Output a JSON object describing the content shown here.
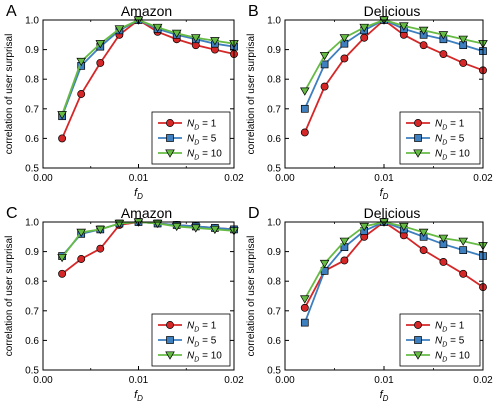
{
  "colors": {
    "red": "#d62728",
    "blue": "#3d7fbf",
    "green": "#66bb44",
    "axis": "#000000"
  },
  "legend_labels": [
    "N_D = 1",
    "N_D = 5",
    "N_D = 10"
  ],
  "chart_data": [
    {
      "panel": "A",
      "title": "Amazon",
      "type": "line",
      "xlabel": "f_D",
      "ylabel": "correlation of user surprisal",
      "xlim": [
        0,
        0.02
      ],
      "ylim": [
        0.5,
        1.0
      ],
      "xticks": [
        0,
        0.01,
        0.02
      ],
      "xtick_labels": [
        "0.00",
        "0.01",
        "0.02"
      ],
      "yticks": [
        0.5,
        0.6,
        0.7,
        0.8,
        0.9,
        1.0
      ],
      "ytick_labels": [
        "0.5",
        "0.6",
        "0.7",
        "0.8",
        "0.9",
        "1.0"
      ],
      "legend_position": "lower-right",
      "x": [
        0.002,
        0.004,
        0.006,
        0.008,
        0.01,
        0.012,
        0.014,
        0.016,
        0.018,
        0.02
      ],
      "series": [
        {
          "name": "N_D = 1",
          "color": "red",
          "marker": "circle",
          "values": [
            0.6,
            0.75,
            0.855,
            0.95,
            1.0,
            0.96,
            0.935,
            0.915,
            0.9,
            0.885
          ]
        },
        {
          "name": "N_D = 5",
          "color": "blue",
          "marker": "square",
          "values": [
            0.675,
            0.845,
            0.91,
            0.965,
            1.0,
            0.97,
            0.95,
            0.935,
            0.92,
            0.91
          ]
        },
        {
          "name": "N_D = 10",
          "color": "green",
          "marker": "triangle",
          "values": [
            0.68,
            0.86,
            0.92,
            0.97,
            1.0,
            0.975,
            0.955,
            0.94,
            0.93,
            0.92
          ]
        }
      ]
    },
    {
      "panel": "B",
      "title": "Delicious",
      "type": "line",
      "xlabel": "f_D",
      "ylabel": "correlation of user surprisal",
      "xlim": [
        0,
        0.02
      ],
      "ylim": [
        0.5,
        1.0
      ],
      "xticks": [
        0,
        0.01,
        0.02
      ],
      "xtick_labels": [
        "0.00",
        "0.01",
        "0.02"
      ],
      "yticks": [
        0.5,
        0.6,
        0.7,
        0.8,
        0.9,
        1.0
      ],
      "ytick_labels": [
        "0.5",
        "0.6",
        "0.7",
        "0.8",
        "0.9",
        "1.0"
      ],
      "legend_position": "lower-right",
      "x": [
        0.002,
        0.004,
        0.006,
        0.008,
        0.01,
        0.012,
        0.014,
        0.016,
        0.018,
        0.02
      ],
      "series": [
        {
          "name": "N_D = 1",
          "color": "red",
          "marker": "circle",
          "values": [
            0.62,
            0.775,
            0.87,
            0.94,
            1.0,
            0.95,
            0.915,
            0.885,
            0.855,
            0.83
          ]
        },
        {
          "name": "N_D = 5",
          "color": "blue",
          "marker": "square",
          "values": [
            0.7,
            0.85,
            0.92,
            0.965,
            1.0,
            0.97,
            0.95,
            0.935,
            0.915,
            0.895
          ]
        },
        {
          "name": "N_D = 10",
          "color": "green",
          "marker": "triangle",
          "values": [
            0.76,
            0.88,
            0.94,
            0.975,
            1.0,
            0.98,
            0.965,
            0.95,
            0.935,
            0.92
          ]
        }
      ]
    },
    {
      "panel": "C",
      "title": "Amazon",
      "type": "line",
      "xlabel": "f_D",
      "ylabel": "correlation of user surprisal",
      "xlim": [
        0,
        0.02
      ],
      "ylim": [
        0.5,
        1.0
      ],
      "xticks": [
        0,
        0.01,
        0.02
      ],
      "xtick_labels": [
        "0.00",
        "0.01",
        "0.02"
      ],
      "yticks": [
        0.5,
        0.6,
        0.7,
        0.8,
        0.9,
        1.0
      ],
      "ytick_labels": [
        "0.5",
        "0.6",
        "0.7",
        "0.8",
        "0.9",
        "1.0"
      ],
      "legend_position": "lower-right",
      "x": [
        0.002,
        0.004,
        0.006,
        0.008,
        0.01,
        0.012,
        0.014,
        0.016,
        0.018,
        0.02
      ],
      "series": [
        {
          "name": "N_D = 1",
          "color": "red",
          "marker": "circle",
          "values": [
            0.825,
            0.875,
            0.91,
            0.99,
            1.0,
            0.995,
            0.99,
            0.985,
            0.98,
            0.975
          ]
        },
        {
          "name": "N_D = 5",
          "color": "blue",
          "marker": "square",
          "values": [
            0.885,
            0.96,
            0.975,
            0.995,
            1.0,
            0.995,
            0.99,
            0.985,
            0.98,
            0.975
          ]
        },
        {
          "name": "N_D = 10",
          "color": "green",
          "marker": "triangle",
          "values": [
            0.88,
            0.965,
            0.975,
            0.995,
            1.0,
            0.995,
            0.985,
            0.98,
            0.975,
            0.97
          ]
        }
      ]
    },
    {
      "panel": "D",
      "title": "Delicious",
      "type": "line",
      "xlabel": "f_D",
      "ylabel": "correlation of user surprisal",
      "xlim": [
        0,
        0.02
      ],
      "ylim": [
        0.5,
        1.0
      ],
      "xticks": [
        0,
        0.01,
        0.02
      ],
      "xtick_labels": [
        "0.00",
        "0.01",
        "0.02"
      ],
      "yticks": [
        0.5,
        0.6,
        0.7,
        0.8,
        0.9,
        1.0
      ],
      "ytick_labels": [
        "0.5",
        "0.6",
        "0.7",
        "0.8",
        "0.9",
        "1.0"
      ],
      "legend_position": "lower-right",
      "x": [
        0.002,
        0.004,
        0.006,
        0.008,
        0.01,
        0.012,
        0.014,
        0.016,
        0.018,
        0.02
      ],
      "series": [
        {
          "name": "N_D = 1",
          "color": "red",
          "marker": "circle",
          "values": [
            0.71,
            0.835,
            0.87,
            0.95,
            1.0,
            0.955,
            0.905,
            0.865,
            0.825,
            0.78
          ]
        },
        {
          "name": "N_D = 5",
          "color": "blue",
          "marker": "square",
          "values": [
            0.66,
            0.835,
            0.915,
            0.97,
            1.0,
            0.975,
            0.95,
            0.925,
            0.905,
            0.885
          ]
        },
        {
          "name": "N_D = 10",
          "color": "green",
          "marker": "triangle",
          "values": [
            0.74,
            0.86,
            0.935,
            0.985,
            1.0,
            0.985,
            0.965,
            0.945,
            0.935,
            0.92
          ]
        }
      ]
    }
  ]
}
